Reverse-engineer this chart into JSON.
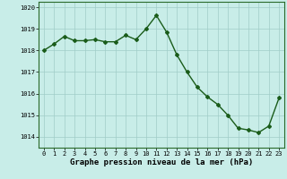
{
  "x": [
    0,
    1,
    2,
    3,
    4,
    5,
    6,
    7,
    8,
    9,
    10,
    11,
    12,
    13,
    14,
    15,
    16,
    17,
    18,
    19,
    20,
    21,
    22,
    23
  ],
  "y": [
    1018.0,
    1018.3,
    1018.65,
    1018.45,
    1018.45,
    1018.5,
    1018.4,
    1018.4,
    1018.7,
    1018.5,
    1019.0,
    1019.62,
    1018.85,
    1017.8,
    1017.0,
    1016.3,
    1015.85,
    1015.5,
    1015.0,
    1014.4,
    1014.32,
    1014.2,
    1014.5,
    1015.8
  ],
  "line_color": "#1a5c1a",
  "marker": "D",
  "marker_size": 2.0,
  "bg_color": "#c8ede8",
  "grid_color": "#a0cdc8",
  "xlabel": "Graphe pression niveau de la mer (hPa)",
  "xlabel_fontsize": 6.5,
  "xlim": [
    -0.5,
    23.5
  ],
  "ylim": [
    1013.5,
    1020.25
  ],
  "yticks": [
    1014,
    1015,
    1016,
    1017,
    1018,
    1019,
    1020
  ],
  "xticks": [
    0,
    1,
    2,
    3,
    4,
    5,
    6,
    7,
    8,
    9,
    10,
    11,
    12,
    13,
    14,
    15,
    16,
    17,
    18,
    19,
    20,
    21,
    22,
    23
  ],
  "tick_fontsize": 5.0,
  "linewidth": 1.0
}
